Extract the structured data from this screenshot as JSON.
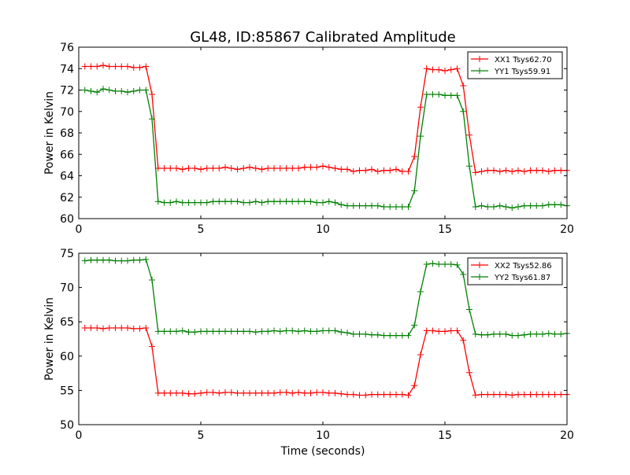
{
  "title": "GL48, ID:85867 Calibrated Amplitude",
  "chart_data": [
    {
      "type": "line",
      "ylabel": "Power in Kelvin",
      "xlabel": "",
      "xlim": [
        0,
        20
      ],
      "ylim": [
        60,
        76
      ],
      "xticks": [
        0,
        5,
        10,
        15,
        20
      ],
      "yticks": [
        60,
        62,
        64,
        66,
        68,
        70,
        72,
        74,
        76
      ],
      "grid": false,
      "legend": "top-right",
      "x": [
        0.25,
        0.5,
        0.75,
        1.0,
        1.25,
        1.5,
        1.75,
        2.0,
        2.25,
        2.5,
        2.75,
        3.0,
        3.25,
        3.5,
        3.75,
        4.0,
        4.25,
        4.5,
        4.75,
        5.0,
        5.25,
        5.5,
        5.75,
        6.0,
        6.25,
        6.5,
        6.75,
        7.0,
        7.25,
        7.5,
        7.75,
        8.0,
        8.25,
        8.5,
        8.75,
        9.0,
        9.25,
        9.5,
        9.75,
        10.0,
        10.25,
        10.5,
        10.75,
        11.0,
        11.25,
        11.5,
        11.75,
        12.0,
        12.25,
        12.5,
        12.75,
        13.0,
        13.25,
        13.5,
        13.75,
        14.0,
        14.25,
        14.5,
        14.75,
        15.0,
        15.25,
        15.5,
        15.75,
        16.0,
        16.25,
        16.5,
        16.75,
        17.0,
        17.25,
        17.5,
        17.75,
        18.0,
        18.25,
        18.5,
        18.75,
        19.0,
        19.25,
        19.5,
        19.75,
        20.0
      ],
      "series": [
        {
          "name": "XX1 Tsys62.70",
          "color": "#ff0000",
          "values": [
            74.2,
            74.2,
            74.2,
            74.3,
            74.2,
            74.2,
            74.2,
            74.2,
            74.1,
            74.1,
            74.2,
            71.6,
            64.7,
            64.7,
            64.7,
            64.7,
            64.6,
            64.7,
            64.7,
            64.6,
            64.7,
            64.7,
            64.7,
            64.8,
            64.7,
            64.6,
            64.7,
            64.8,
            64.7,
            64.6,
            64.7,
            64.7,
            64.7,
            64.7,
            64.7,
            64.7,
            64.8,
            64.8,
            64.8,
            64.9,
            64.8,
            64.7,
            64.6,
            64.6,
            64.4,
            64.5,
            64.5,
            64.6,
            64.4,
            64.5,
            64.5,
            64.6,
            64.4,
            64.4,
            65.8,
            70.4,
            74.0,
            73.9,
            73.9,
            73.8,
            73.9,
            74.0,
            72.4,
            67.8,
            64.3,
            64.4,
            64.5,
            64.5,
            64.4,
            64.5,
            64.4,
            64.5,
            64.4,
            64.5,
            64.5,
            64.5,
            64.4,
            64.5,
            64.5,
            64.5
          ]
        },
        {
          "name": "YY1 Tsys59.91",
          "color": "#008000",
          "values": [
            72.0,
            71.9,
            71.8,
            72.1,
            72.0,
            71.9,
            71.9,
            71.8,
            71.9,
            72.0,
            72.0,
            69.3,
            61.6,
            61.5,
            61.5,
            61.6,
            61.5,
            61.5,
            61.5,
            61.5,
            61.5,
            61.6,
            61.6,
            61.6,
            61.6,
            61.6,
            61.5,
            61.5,
            61.6,
            61.5,
            61.6,
            61.6,
            61.6,
            61.6,
            61.6,
            61.6,
            61.6,
            61.6,
            61.5,
            61.5,
            61.6,
            61.5,
            61.3,
            61.2,
            61.2,
            61.2,
            61.2,
            61.2,
            61.2,
            61.1,
            61.1,
            61.1,
            61.1,
            61.1,
            62.6,
            67.7,
            71.6,
            71.6,
            71.6,
            71.5,
            71.5,
            71.5,
            70.0,
            64.9,
            61.1,
            61.2,
            61.1,
            61.1,
            61.2,
            61.1,
            61.0,
            61.1,
            61.2,
            61.2,
            61.2,
            61.2,
            61.3,
            61.3,
            61.3,
            61.2
          ]
        }
      ]
    },
    {
      "type": "line",
      "ylabel": "Power in Kelvin",
      "xlabel": "Time (seconds)",
      "xlim": [
        0,
        20
      ],
      "ylim": [
        50,
        75
      ],
      "xticks": [
        0,
        5,
        10,
        15,
        20
      ],
      "yticks": [
        50,
        55,
        60,
        65,
        70,
        75
      ],
      "grid": false,
      "legend": "top-right",
      "x": [
        0.25,
        0.5,
        0.75,
        1.0,
        1.25,
        1.5,
        1.75,
        2.0,
        2.25,
        2.5,
        2.75,
        3.0,
        3.25,
        3.5,
        3.75,
        4.0,
        4.25,
        4.5,
        4.75,
        5.0,
        5.25,
        5.5,
        5.75,
        6.0,
        6.25,
        6.5,
        6.75,
        7.0,
        7.25,
        7.5,
        7.75,
        8.0,
        8.25,
        8.5,
        8.75,
        9.0,
        9.25,
        9.5,
        9.75,
        10.0,
        10.25,
        10.5,
        10.75,
        11.0,
        11.25,
        11.5,
        11.75,
        12.0,
        12.25,
        12.5,
        12.75,
        13.0,
        13.25,
        13.5,
        13.75,
        14.0,
        14.25,
        14.5,
        14.75,
        15.0,
        15.25,
        15.5,
        15.75,
        16.0,
        16.25,
        16.5,
        16.75,
        17.0,
        17.25,
        17.5,
        17.75,
        18.0,
        18.25,
        18.5,
        18.75,
        19.0,
        19.25,
        19.5,
        19.75,
        20.0
      ],
      "series": [
        {
          "name": "XX2 Tsys52.86",
          "color": "#ff0000",
          "values": [
            64.1,
            64.1,
            64.1,
            64.0,
            64.1,
            64.1,
            64.1,
            64.1,
            64.0,
            64.0,
            64.1,
            61.4,
            54.6,
            54.6,
            54.6,
            54.6,
            54.6,
            54.5,
            54.5,
            54.6,
            54.7,
            54.7,
            54.6,
            54.7,
            54.7,
            54.6,
            54.6,
            54.6,
            54.6,
            54.6,
            54.6,
            54.6,
            54.7,
            54.7,
            54.6,
            54.7,
            54.6,
            54.6,
            54.7,
            54.7,
            54.6,
            54.6,
            54.5,
            54.4,
            54.4,
            54.3,
            54.3,
            54.4,
            54.4,
            54.4,
            54.4,
            54.4,
            54.4,
            54.3,
            55.7,
            60.2,
            63.7,
            63.7,
            63.6,
            63.6,
            63.7,
            63.7,
            62.3,
            57.6,
            54.3,
            54.4,
            54.4,
            54.4,
            54.4,
            54.4,
            54.3,
            54.4,
            54.4,
            54.4,
            54.4,
            54.4,
            54.4,
            54.4,
            54.4,
            54.4
          ]
        },
        {
          "name": "YY2 Tsys61.87",
          "color": "#008000",
          "values": [
            73.9,
            74.0,
            74.0,
            74.0,
            74.0,
            73.9,
            73.9,
            73.9,
            74.0,
            74.0,
            74.1,
            71.1,
            63.6,
            63.6,
            63.6,
            63.6,
            63.7,
            63.5,
            63.5,
            63.6,
            63.6,
            63.6,
            63.6,
            63.6,
            63.6,
            63.6,
            63.6,
            63.6,
            63.5,
            63.6,
            63.6,
            63.7,
            63.6,
            63.7,
            63.7,
            63.6,
            63.7,
            63.6,
            63.6,
            63.7,
            63.7,
            63.7,
            63.5,
            63.4,
            63.2,
            63.2,
            63.2,
            63.1,
            63.1,
            63.0,
            63.0,
            63.0,
            63.0,
            63.0,
            64.5,
            69.4,
            73.4,
            73.5,
            73.4,
            73.4,
            73.4,
            73.3,
            71.9,
            66.8,
            63.2,
            63.1,
            63.1,
            63.2,
            63.2,
            63.2,
            63.0,
            63.0,
            63.1,
            63.2,
            63.2,
            63.2,
            63.3,
            63.2,
            63.2,
            63.3
          ]
        }
      ]
    }
  ]
}
